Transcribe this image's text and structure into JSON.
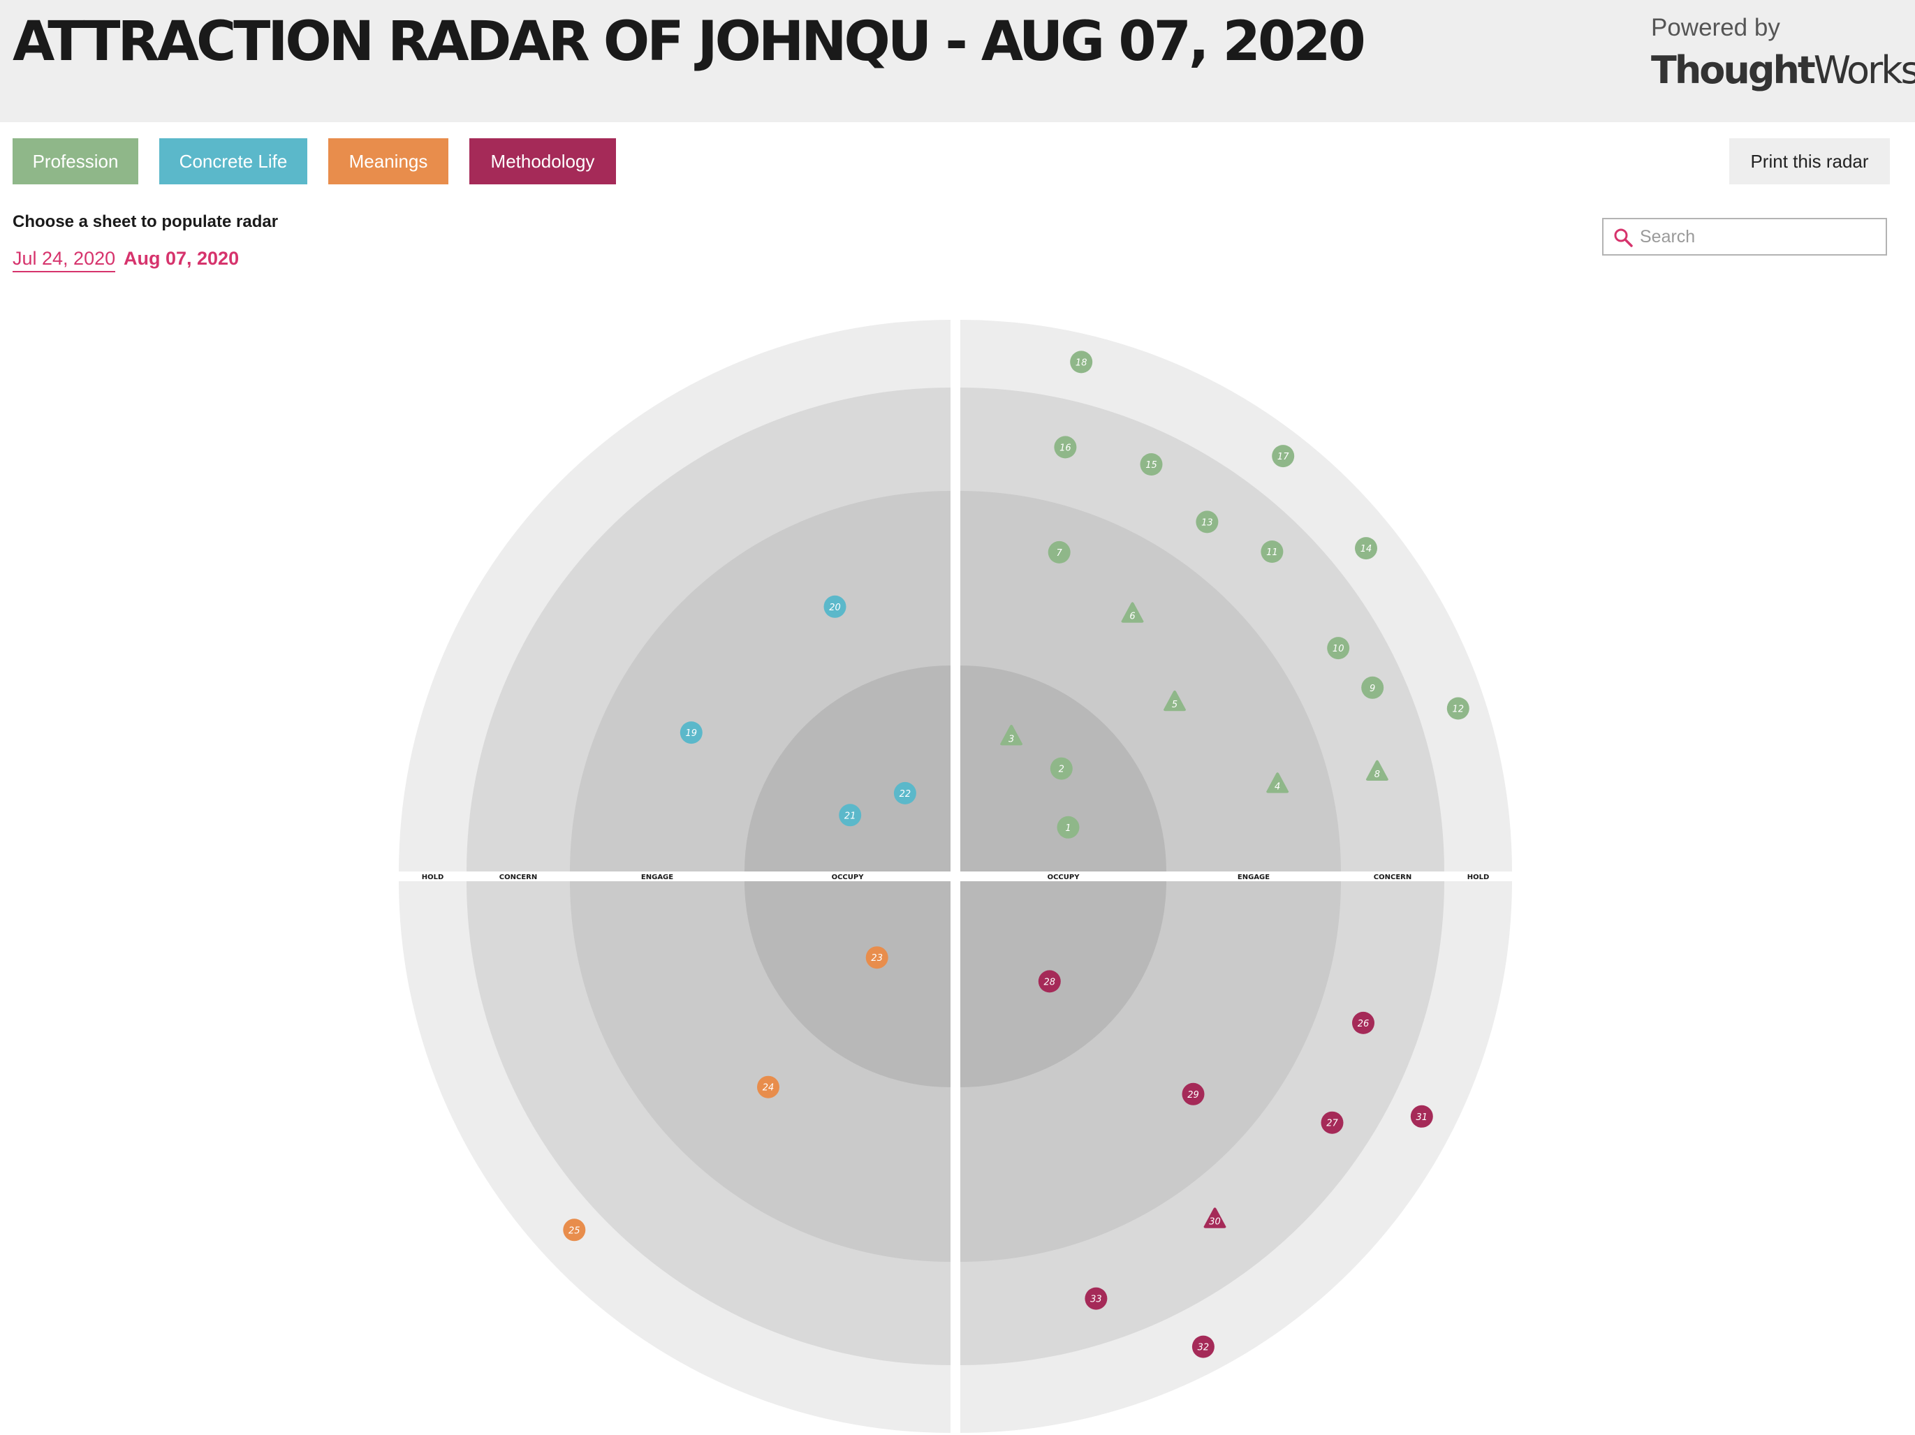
{
  "header": {
    "title": "ATTRACTION RADAR OF JOHNQU - AUG 07, 2020",
    "powered_by": "Powered by",
    "brand_bold": "Thought",
    "brand_light": "Works",
    "brand_mark": "®"
  },
  "quadrant_buttons": [
    {
      "label": "Profession",
      "color": "#8fb789"
    },
    {
      "label": "Concrete Life",
      "color": "#5bb8ca"
    },
    {
      "label": "Meanings",
      "color": "#e88d4c"
    },
    {
      "label": "Methodology",
      "color": "#a52a58"
    }
  ],
  "print_label": "Print this radar",
  "sheets": {
    "prompt": "Choose a sheet to populate radar",
    "items": [
      "Jul 24, 2020",
      "Aug 07, 2020"
    ],
    "active": "Aug 07, 2020"
  },
  "search": {
    "placeholder": "Search",
    "value": "",
    "icon": "search-icon"
  },
  "chart_data": {
    "type": "radar",
    "rings": [
      "OCCUPY",
      "ENGAGE",
      "CONCERN",
      "HOLD"
    ],
    "quadrants": [
      {
        "name": "Profession",
        "position": "top-right",
        "color": "#8fb789"
      },
      {
        "name": "Concrete Life",
        "position": "top-left",
        "color": "#5bb8ca"
      },
      {
        "name": "Meanings",
        "position": "bottom-left",
        "color": "#e88d4c"
      },
      {
        "name": "Methodology",
        "position": "bottom-right",
        "color": "#a52a58"
      }
    ],
    "blips": [
      {
        "id": 1,
        "quadrant": "Profession",
        "ring": "OCCUPY",
        "shape": "circle"
      },
      {
        "id": 2,
        "quadrant": "Profession",
        "ring": "OCCUPY",
        "shape": "circle"
      },
      {
        "id": 3,
        "quadrant": "Profession",
        "ring": "OCCUPY",
        "shape": "triangle"
      },
      {
        "id": 4,
        "quadrant": "Profession",
        "ring": "ENGAGE",
        "shape": "triangle"
      },
      {
        "id": 5,
        "quadrant": "Profession",
        "ring": "ENGAGE",
        "shape": "triangle"
      },
      {
        "id": 6,
        "quadrant": "Profession",
        "ring": "ENGAGE",
        "shape": "triangle"
      },
      {
        "id": 7,
        "quadrant": "Profession",
        "ring": "ENGAGE",
        "shape": "circle"
      },
      {
        "id": 8,
        "quadrant": "Profession",
        "ring": "CONCERN",
        "shape": "triangle"
      },
      {
        "id": 9,
        "quadrant": "Profession",
        "ring": "CONCERN",
        "shape": "circle"
      },
      {
        "id": 10,
        "quadrant": "Profession",
        "ring": "CONCERN",
        "shape": "circle"
      },
      {
        "id": 11,
        "quadrant": "Profession",
        "ring": "CONCERN",
        "shape": "circle"
      },
      {
        "id": 12,
        "quadrant": "Profession",
        "ring": "HOLD",
        "shape": "circle"
      },
      {
        "id": 13,
        "quadrant": "Profession",
        "ring": "CONCERN",
        "shape": "circle"
      },
      {
        "id": 14,
        "quadrant": "Profession",
        "ring": "HOLD",
        "shape": "circle"
      },
      {
        "id": 15,
        "quadrant": "Profession",
        "ring": "CONCERN",
        "shape": "circle"
      },
      {
        "id": 16,
        "quadrant": "Profession",
        "ring": "CONCERN",
        "shape": "circle"
      },
      {
        "id": 17,
        "quadrant": "Profession",
        "ring": "HOLD",
        "shape": "circle"
      },
      {
        "id": 18,
        "quadrant": "Profession",
        "ring": "HOLD",
        "shape": "circle"
      },
      {
        "id": 19,
        "quadrant": "Concrete Life",
        "ring": "ENGAGE",
        "shape": "circle"
      },
      {
        "id": 20,
        "quadrant": "Concrete Life",
        "ring": "ENGAGE",
        "shape": "circle"
      },
      {
        "id": 21,
        "quadrant": "Concrete Life",
        "ring": "OCCUPY",
        "shape": "circle"
      },
      {
        "id": 22,
        "quadrant": "Concrete Life",
        "ring": "OCCUPY",
        "shape": "circle"
      },
      {
        "id": 23,
        "quadrant": "Meanings",
        "ring": "OCCUPY",
        "shape": "circle"
      },
      {
        "id": 24,
        "quadrant": "Meanings",
        "ring": "ENGAGE",
        "shape": "circle"
      },
      {
        "id": 25,
        "quadrant": "Meanings",
        "ring": "HOLD",
        "shape": "circle"
      },
      {
        "id": 26,
        "quadrant": "Methodology",
        "ring": "CONCERN",
        "shape": "circle"
      },
      {
        "id": 27,
        "quadrant": "Methodology",
        "ring": "CONCERN",
        "shape": "circle"
      },
      {
        "id": 28,
        "quadrant": "Methodology",
        "ring": "OCCUPY",
        "shape": "circle"
      },
      {
        "id": 29,
        "quadrant": "Methodology",
        "ring": "ENGAGE",
        "shape": "circle"
      },
      {
        "id": 30,
        "quadrant": "Methodology",
        "ring": "CONCERN",
        "shape": "triangle"
      },
      {
        "id": 31,
        "quadrant": "Methodology",
        "ring": "HOLD",
        "shape": "circle"
      },
      {
        "id": 32,
        "quadrant": "Methodology",
        "ring": "HOLD",
        "shape": "circle"
      },
      {
        "id": 33,
        "quadrant": "Methodology",
        "ring": "CONCERN",
        "shape": "circle"
      }
    ]
  }
}
